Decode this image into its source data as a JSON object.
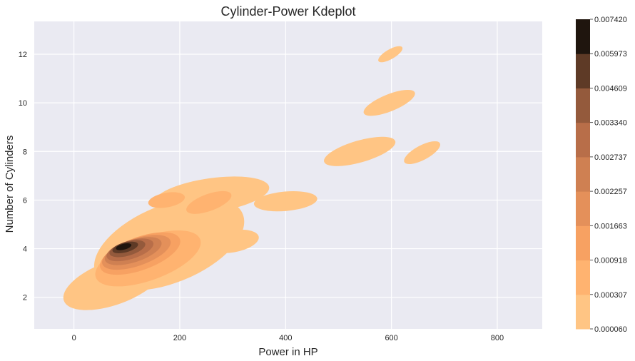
{
  "chart_data": {
    "type": "kde-contour",
    "title": "Cylinder-Power Kdeplot",
    "xlabel": "Power in HP",
    "ylabel": "Number of Cylinders",
    "xlim": [
      -75,
      885
    ],
    "ylim": [
      0.7,
      13.35
    ],
    "xticks": [
      0,
      200,
      400,
      600,
      800
    ],
    "yticks": [
      2,
      4,
      6,
      8,
      10,
      12
    ],
    "grid": true,
    "background": "#eaeaf2",
    "colorbar": {
      "levels": [
        "0.000060",
        "0.000307",
        "0.000918",
        "0.001663",
        "0.002257",
        "0.002737",
        "0.003340",
        "0.004609",
        "0.005973",
        "0.007420"
      ],
      "colors": [
        "#ffc584",
        "#ffb370",
        "#f7a162",
        "#e4905a",
        "#cf8052",
        "#b86e49",
        "#945a3c",
        "#5e3a26",
        "#1f150e"
      ]
    },
    "blobs": [
      {
        "level": 0,
        "cx": 180,
        "cy": 4.2,
        "rx": 150,
        "ry": 1.6,
        "rot": -22
      },
      {
        "level": 0,
        "cx": 75,
        "cy": 2.6,
        "rx": 100,
        "ry": 0.9,
        "rot": -20
      },
      {
        "level": 0,
        "cx": 260,
        "cy": 6.2,
        "rx": 110,
        "ry": 0.7,
        "rot": -8
      },
      {
        "level": 0,
        "cx": 400,
        "cy": 5.95,
        "rx": 60,
        "ry": 0.4,
        "rot": -5
      },
      {
        "level": 0,
        "cx": 300,
        "cy": 4.3,
        "rx": 50,
        "ry": 0.45,
        "rot": -10
      },
      {
        "level": 0,
        "cx": 540,
        "cy": 8.0,
        "rx": 70,
        "ry": 0.45,
        "rot": -16
      },
      {
        "level": 0,
        "cx": 658,
        "cy": 7.95,
        "rx": 38,
        "ry": 0.3,
        "rot": -28
      },
      {
        "level": 0,
        "cx": 596,
        "cy": 10.0,
        "rx": 52,
        "ry": 0.35,
        "rot": -22
      },
      {
        "level": 0,
        "cx": 598,
        "cy": 12.0,
        "rx": 26,
        "ry": 0.2,
        "rot": -30
      },
      {
        "level": 1,
        "cx": 140,
        "cy": 3.6,
        "rx": 105,
        "ry": 0.9,
        "rot": -20
      },
      {
        "level": 1,
        "cx": 255,
        "cy": 5.9,
        "rx": 45,
        "ry": 0.35,
        "rot": -20
      },
      {
        "level": 1,
        "cx": 175,
        "cy": 6.0,
        "rx": 35,
        "ry": 0.3,
        "rot": -10
      },
      {
        "level": 2,
        "cx": 125,
        "cy": 3.8,
        "rx": 80,
        "ry": 0.68,
        "rot": -20
      },
      {
        "level": 3,
        "cx": 118,
        "cy": 3.85,
        "rx": 68,
        "ry": 0.56,
        "rot": -19
      },
      {
        "level": 4,
        "cx": 112,
        "cy": 3.9,
        "rx": 56,
        "ry": 0.46,
        "rot": -18
      },
      {
        "level": 5,
        "cx": 106,
        "cy": 3.95,
        "rx": 46,
        "ry": 0.38,
        "rot": -17
      },
      {
        "level": 6,
        "cx": 101,
        "cy": 4.0,
        "rx": 35,
        "ry": 0.29,
        "rot": -16
      },
      {
        "level": 7,
        "cx": 97,
        "cy": 4.05,
        "rx": 25,
        "ry": 0.2,
        "rot": -15
      },
      {
        "level": 8,
        "cx": 94,
        "cy": 4.08,
        "rx": 15,
        "ry": 0.12,
        "rot": -14
      }
    ]
  }
}
